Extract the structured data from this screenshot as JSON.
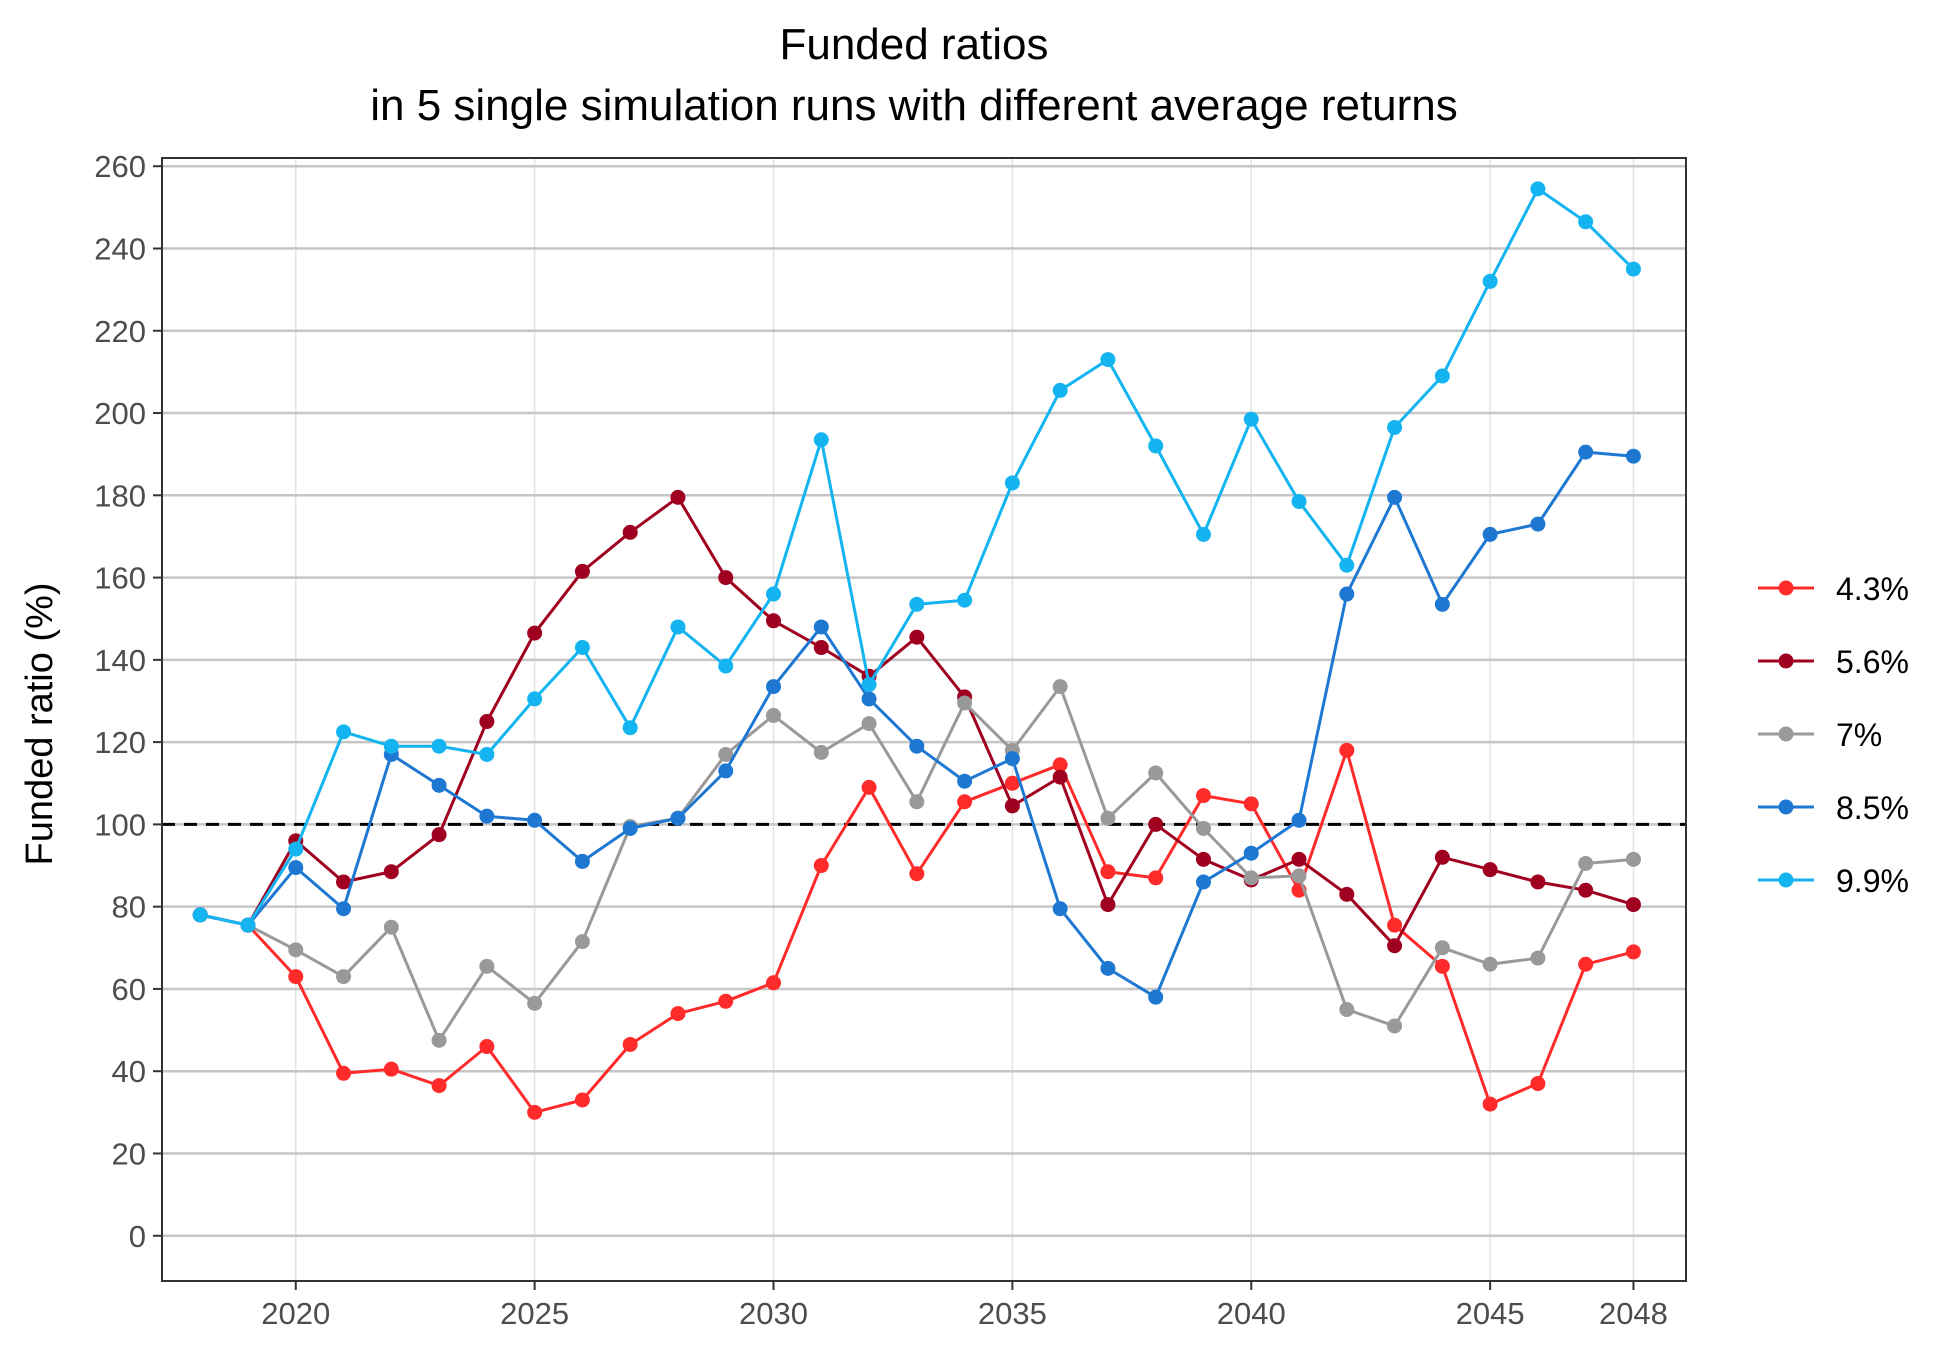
{
  "chart_data": {
    "type": "line",
    "title": "Funded ratios",
    "subtitle": "in 5 single simulation runs with different average returns",
    "xlabel": "",
    "ylabel": "Funded ratio (%)",
    "xlim": [
      2017.2,
      2049.1
    ],
    "ylim": [
      -11,
      262
    ],
    "x_ticks": [
      2020,
      2025,
      2030,
      2035,
      2040,
      2045,
      2048
    ],
    "y_ticks": [
      0,
      20,
      40,
      60,
      80,
      100,
      120,
      140,
      160,
      180,
      200,
      220,
      240,
      260
    ],
    "reference_line": {
      "y": 100,
      "style": "dashed",
      "color": "#000000"
    },
    "grid": true,
    "legend_position": "right",
    "x": [
      2018,
      2019,
      2020,
      2021,
      2022,
      2023,
      2024,
      2025,
      2026,
      2027,
      2028,
      2029,
      2030,
      2031,
      2032,
      2033,
      2034,
      2035,
      2036,
      2037,
      2038,
      2039,
      2040,
      2041,
      2042,
      2043,
      2044,
      2045,
      2046,
      2047,
      2048
    ],
    "series": [
      {
        "name": "4.3%",
        "color": "#FF2B2B",
        "values": [
          78,
          75.5,
          63,
          39.5,
          40.5,
          36.5,
          46,
          30,
          33,
          46.5,
          54,
          57,
          61.5,
          90,
          109,
          88,
          105.5,
          110,
          114.5,
          88.5,
          87,
          107,
          105,
          84,
          118,
          75.5,
          65.5,
          32,
          37,
          66,
          69
        ]
      },
      {
        "name": "5.6%",
        "color": "#A00020",
        "values": [
          78,
          75.5,
          96,
          86,
          88.5,
          97.5,
          125,
          146.5,
          161.5,
          171,
          179.5,
          160,
          149.5,
          143,
          136,
          145.5,
          131,
          104.5,
          111.5,
          80.5,
          100,
          91.5,
          86.5,
          91.5,
          83,
          70.5,
          92,
          89,
          86,
          84,
          80.5
        ]
      },
      {
        "name": "7%",
        "color": "#999999",
        "values": [
          78,
          75.5,
          69.5,
          63,
          75,
          47.5,
          65.5,
          56.5,
          71.5,
          99.5,
          101.5,
          117,
          126.5,
          117.5,
          124.5,
          105.5,
          129.5,
          118,
          133.5,
          101.5,
          112.5,
          99,
          87,
          87.5,
          55,
          51,
          70,
          66,
          67.5,
          90.5,
          91.5
        ]
      },
      {
        "name": "8.5%",
        "color": "#1E78D2",
        "values": [
          78,
          75.5,
          89.5,
          79.5,
          117,
          109.5,
          102,
          101,
          91,
          99,
          101.5,
          113,
          133.5,
          148,
          130.5,
          119,
          110.5,
          116,
          79.5,
          65,
          58,
          86,
          93,
          101,
          156,
          179.5,
          153.5,
          170.5,
          173,
          190.5,
          189.5
        ]
      },
      {
        "name": "9.9%",
        "color": "#14B4F0",
        "values": [
          78,
          75.5,
          94,
          122.5,
          119,
          119,
          117,
          130.5,
          143,
          123.5,
          148,
          138.5,
          156,
          193.5,
          134,
          153.5,
          154.5,
          183,
          205.5,
          213,
          192,
          170.5,
          198.5,
          178.5,
          163,
          196.5,
          209,
          232,
          254.5,
          246.5,
          235
        ]
      }
    ]
  }
}
